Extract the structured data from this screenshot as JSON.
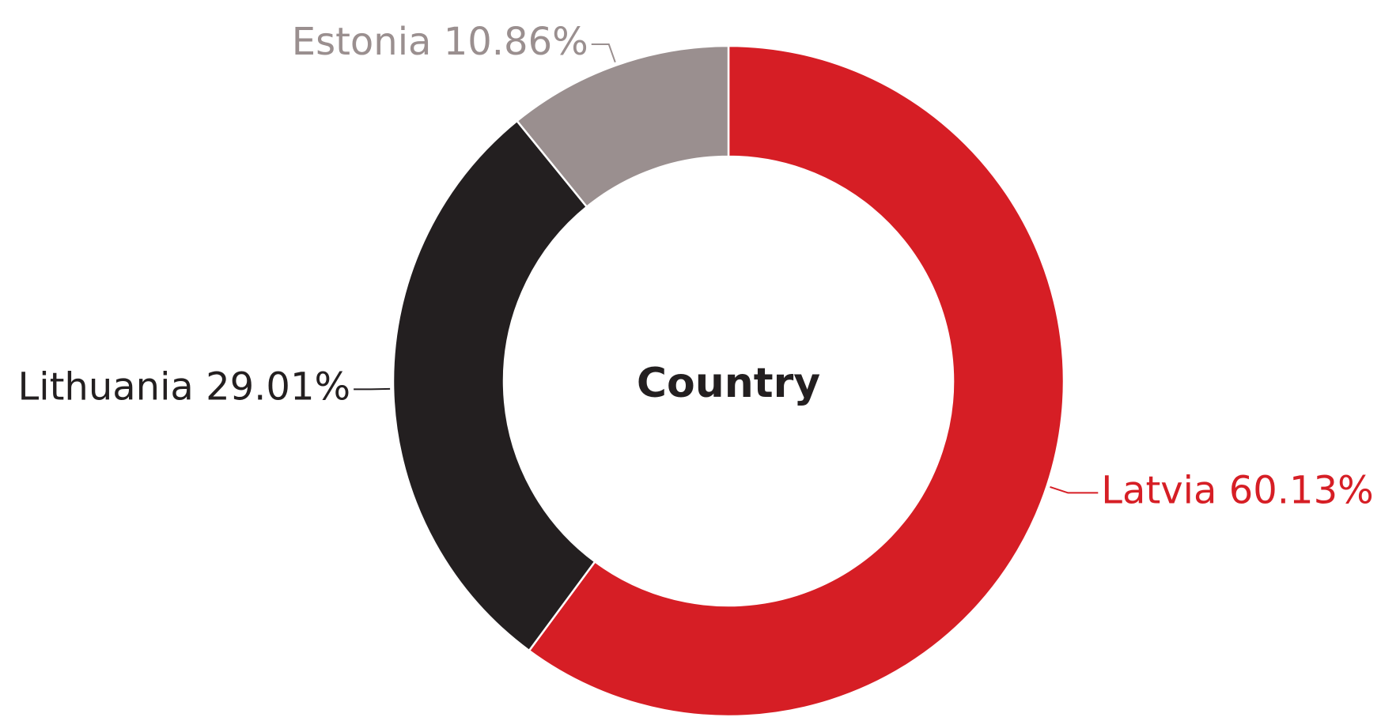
{
  "chart_data": {
    "type": "pie",
    "variant": "donut",
    "center_label": "Country",
    "slices": [
      {
        "name": "Latvia",
        "value": 60.13,
        "label": "Latvia 60.13%",
        "color": "#d61e25",
        "label_color": "#d61e25"
      },
      {
        "name": "Lithuania",
        "value": 29.01,
        "label": "Lithuania 29.01%",
        "color": "#231f20",
        "label_color": "#231f20"
      },
      {
        "name": "Estonia",
        "value": 10.86,
        "label": "Estonia 10.86%",
        "color": "#9a8f8f",
        "label_color": "#9a8f8f"
      }
    ],
    "start_position": "top",
    "direction": "clockwise",
    "legend": "none",
    "grid": false
  }
}
